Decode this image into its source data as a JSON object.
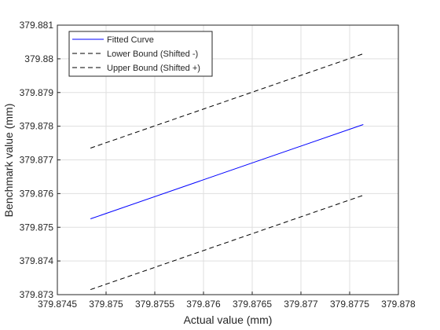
{
  "chart_data": {
    "type": "line",
    "title": "",
    "xlabel": "Actual value (mm)",
    "ylabel": "Benchmark value (mm)",
    "xlim": [
      379.8745,
      379.878
    ],
    "ylim": [
      379.873,
      379.881
    ],
    "xticks": [
      379.8745,
      379.875,
      379.8755,
      379.876,
      379.8765,
      379.877,
      379.8775,
      379.878
    ],
    "xtick_labels": [
      "379.8745",
      "379.875",
      "379.8755",
      "379.876",
      "379.8765",
      "379.877",
      "379.8775",
      "379.878"
    ],
    "yticks": [
      379.873,
      379.874,
      379.875,
      379.876,
      379.877,
      379.878,
      379.879,
      379.88,
      379.881
    ],
    "ytick_labels": [
      "379.873",
      "379.874",
      "379.875",
      "379.876",
      "379.877",
      "379.878",
      "379.879",
      "379.88",
      "379.881"
    ],
    "grid": true,
    "legend_position": "top-left",
    "series": [
      {
        "name": "Fitted Curve",
        "color": "#0000ff",
        "dash": "solid",
        "x": [
          379.87484,
          379.87764
        ],
        "y": [
          379.87525,
          379.87805
        ]
      },
      {
        "name": "Lower Bound (Shifted -)",
        "color": "#000000",
        "dash": "dashed",
        "x": [
          379.87484,
          379.87764
        ],
        "y": [
          379.87315,
          379.87595
        ]
      },
      {
        "name": "Upper Bound (Shifted +)",
        "color": "#000000",
        "dash": "dashed",
        "x": [
          379.87484,
          379.87764
        ],
        "y": [
          379.87735,
          379.88015
        ]
      }
    ]
  }
}
